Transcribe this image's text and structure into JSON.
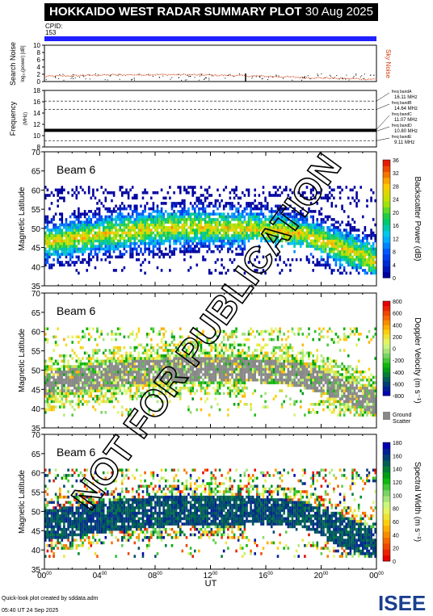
{
  "header": {
    "title": "HOKKAIDO WEST RADAR SUMMARY PLOT",
    "date": "30 Aug 2025",
    "cpid_label": "CPID:",
    "cpid_value": "153"
  },
  "colors": {
    "cpid_bar": "#2020ff",
    "noise_line": "#d04010",
    "ground_scatter": "#888888"
  },
  "noise_panel": {
    "ylabel": "Search Noise",
    "ylabel_sub": "log$_{10}$(power) [dB]",
    "yticks": [
      "0",
      "2",
      "4",
      "6",
      "8",
      "10"
    ],
    "right_label": "Sky Noise"
  },
  "freq_panel": {
    "ylabel": "Frequency",
    "unit": "(MHz)",
    "yticks": [
      "8",
      "10",
      "12",
      "14",
      "16",
      "18"
    ],
    "bands": [
      {
        "name": "freq bandA",
        "value": "16.11 MHz"
      },
      {
        "name": "freq bandB",
        "value": "14.64 MHz"
      },
      {
        "name": "freq bandC",
        "value": "11.07 MHz"
      },
      {
        "name": "freq bandD",
        "value": "10.80 MHz"
      },
      {
        "name": "freq bandE",
        "value": "9.11 MHz"
      }
    ]
  },
  "panels": [
    {
      "beam": "Beam  6",
      "ylabel": "Magnetic Latitude",
      "yticks": [
        "35",
        "40",
        "45",
        "50",
        "55",
        "60",
        "65",
        "70"
      ],
      "cbar_label": "Backscatter Power (dB)",
      "cbar_ticks": [
        "0",
        "4",
        "8",
        "12",
        "16",
        "20",
        "24",
        "28",
        "32",
        "36"
      ]
    },
    {
      "beam": "Beam  6",
      "ylabel": "Magnetic Latitude",
      "yticks": [
        "35",
        "40",
        "45",
        "50",
        "55",
        "60",
        "65",
        "70"
      ],
      "cbar_label": "Doppler Velocity (m s⁻¹)",
      "cbar_ticks": [
        "800",
        "600",
        "400",
        "200",
        "0",
        "-200",
        "-400",
        "-600",
        "-800"
      ],
      "ground_label_1": "Ground",
      "ground_label_2": "Scatter"
    },
    {
      "beam": "Beam  6",
      "ylabel": "Magnetic Latitude",
      "yticks": [
        "35",
        "40",
        "45",
        "50",
        "55",
        "60",
        "65",
        "70"
      ],
      "cbar_label": "Spectral Width (m s⁻¹)",
      "cbar_ticks": [
        "0",
        "20",
        "40",
        "60",
        "80",
        "100",
        "120",
        "140",
        "160",
        "180"
      ]
    }
  ],
  "xaxis": {
    "ticks": [
      "00",
      "04",
      "08",
      "12",
      "16",
      "20",
      "00"
    ],
    "tick_sup": "00",
    "label": "UT"
  },
  "footer": {
    "credit": "Quick-look plot created by sddata.adm",
    "timestamp": "05:40 UT 24 Sep 2025",
    "logo": "ISEE",
    "watermark": "NOT FOR PUBLICATION"
  },
  "chart_data": [
    {
      "type": "line",
      "title": "Search Noise",
      "x_range_hours": [
        0,
        24
      ],
      "ylim": [
        0,
        10
      ],
      "approx_level": 1.5
    },
    {
      "type": "scatter",
      "title": "Frequency",
      "ylim": [
        8,
        18
      ],
      "series": [
        {
          "name": "freq bandC",
          "value_mhz": 11.07
        },
        {
          "name": "freq bandD",
          "value_mhz": 10.8
        }
      ]
    },
    {
      "type": "heatmap",
      "title": "Backscatter Power",
      "ylim": [
        35,
        70
      ],
      "clim": [
        0,
        36
      ]
    },
    {
      "type": "heatmap",
      "title": "Doppler Velocity",
      "ylim": [
        35,
        70
      ],
      "clim": [
        -800,
        800
      ]
    },
    {
      "type": "heatmap",
      "title": "Spectral Width",
      "ylim": [
        35,
        70
      ],
      "clim": [
        0,
        180
      ]
    }
  ]
}
